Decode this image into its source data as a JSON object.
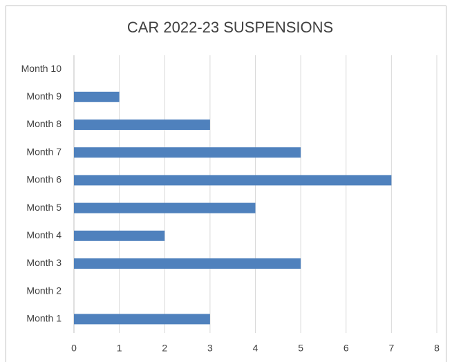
{
  "chart_data": {
    "type": "hbar",
    "title": "CAR 2022-23 SUSPENSIONS",
    "categories": [
      "Month 1",
      "Month 2",
      "Month 3",
      "Month 4",
      "Month 5",
      "Month 6",
      "Month 7",
      "Month 8",
      "Month 9",
      "Month 10"
    ],
    "values": [
      3,
      0,
      5,
      2,
      4,
      7,
      5,
      3,
      1,
      0
    ],
    "color": "#4f81bd",
    "xlim": [
      0,
      8
    ],
    "xticks": [
      0,
      1,
      2,
      3,
      4,
      5,
      6,
      7,
      8
    ],
    "grid": true
  }
}
